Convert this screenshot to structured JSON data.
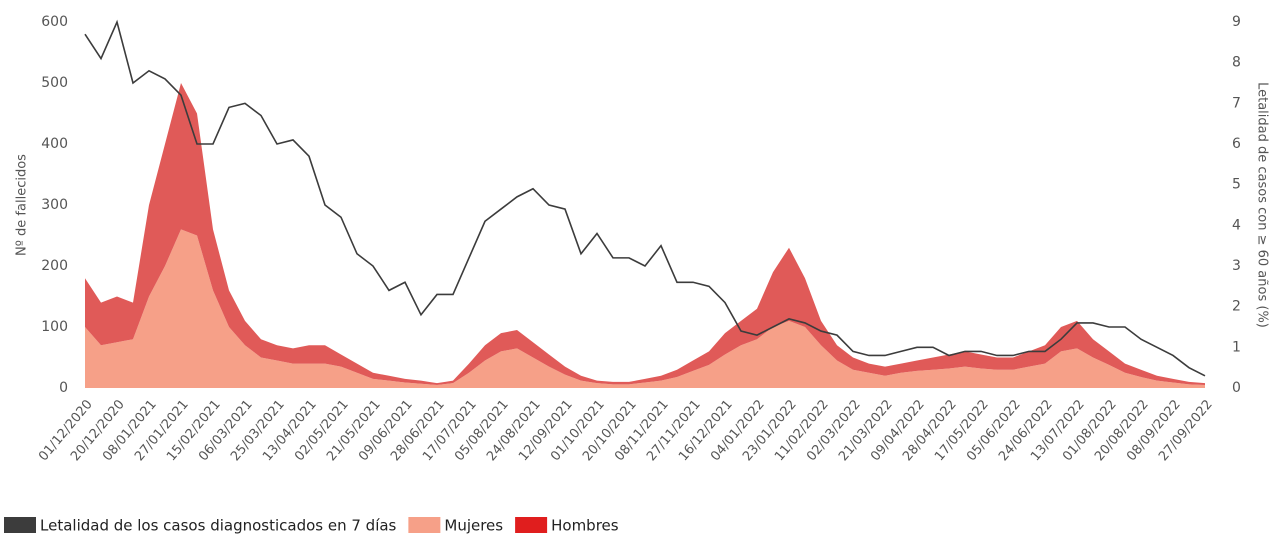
{
  "chart_data": {
    "type": "area",
    "stacked": true,
    "y_label": "Nº de fallecidos",
    "y2_label": "Letalidad de casos con ≥ 60 años (%)",
    "categories": [
      "01/12/2020",
      null,
      "20/12/2020",
      null,
      "08/01/2021",
      null,
      "27/01/2021",
      null,
      "15/02/2021",
      null,
      "06/03/2021",
      null,
      "25/03/2021",
      null,
      "13/04/2021",
      null,
      "02/05/2021",
      null,
      "21/05/2021",
      null,
      "09/06/2021",
      null,
      "28/06/2021",
      null,
      "17/07/2021",
      null,
      "05/08/2021",
      null,
      "24/08/2021",
      null,
      "12/09/2021",
      null,
      "01/10/2021",
      null,
      "20/10/2021",
      null,
      "08/11/2021",
      null,
      "27/11/2021",
      null,
      "16/12/2021",
      null,
      "04/01/2022",
      null,
      "23/01/2022",
      null,
      "11/02/2022",
      null,
      "02/03/2022",
      null,
      "21/03/2022",
      null,
      "09/04/2022",
      null,
      "28/04/2022",
      null,
      "17/05/2022",
      null,
      "05/06/2022",
      null,
      "24/06/2022",
      null,
      "13/07/2022",
      null,
      "01/08/2022",
      null,
      "20/08/2022",
      null,
      "08/09/2022",
      null,
      "27/09/2022"
    ],
    "series": [
      {
        "name": "Letalidad de los casos diagnosticados en 7 días",
        "type": "line",
        "axis": "y2",
        "color": "#3c3c3c",
        "values": [
          8.7,
          8.1,
          9.0,
          7.5,
          7.8,
          7.6,
          7.2,
          6.0,
          6.0,
          6.9,
          7.0,
          6.7,
          6.0,
          6.1,
          5.7,
          4.5,
          4.2,
          3.3,
          3.0,
          2.4,
          2.6,
          1.8,
          2.3,
          2.3,
          3.2,
          4.1,
          4.4,
          4.7,
          4.9,
          4.5,
          4.4,
          3.3,
          3.8,
          3.2,
          3.2,
          3.0,
          3.5,
          2.6,
          2.6,
          2.5,
          2.1,
          1.4,
          1.3,
          1.5,
          1.7,
          1.6,
          1.4,
          1.3,
          0.9,
          0.8,
          0.8,
          0.9,
          1.0,
          1.0,
          0.8,
          0.9,
          0.9,
          0.8,
          0.8,
          0.9,
          0.9,
          1.2,
          1.6,
          1.6,
          1.5,
          1.5,
          1.2,
          1.0,
          0.8,
          0.5,
          0.3
        ]
      },
      {
        "name": "Mujeres",
        "color": "#f6a088",
        "values": [
          100,
          70,
          75,
          80,
          150,
          200,
          260,
          250,
          160,
          100,
          70,
          50,
          45,
          40,
          40,
          40,
          35,
          25,
          15,
          12,
          9,
          7,
          5,
          8,
          25,
          45,
          60,
          65,
          50,
          35,
          22,
          12,
          8,
          6,
          6,
          9,
          12,
          18,
          28,
          38,
          55,
          70,
          80,
          100,
          110,
          100,
          70,
          45,
          30,
          25,
          20,
          25,
          28,
          30,
          32,
          35,
          32,
          30,
          30,
          35,
          40,
          60,
          65,
          50,
          38,
          25,
          18,
          12,
          9,
          6,
          5
        ]
      },
      {
        "name": "Hombres",
        "color": "#e05a58",
        "legend_color": "#e01e1e",
        "values": [
          80,
          70,
          75,
          60,
          150,
          200,
          240,
          200,
          100,
          60,
          40,
          30,
          25,
          25,
          30,
          30,
          20,
          15,
          10,
          8,
          6,
          5,
          3,
          4,
          15,
          25,
          30,
          30,
          25,
          20,
          13,
          8,
          4,
          4,
          4,
          6,
          8,
          12,
          17,
          22,
          35,
          40,
          50,
          90,
          120,
          80,
          40,
          25,
          20,
          15,
          15,
          15,
          17,
          20,
          23,
          25,
          23,
          20,
          20,
          25,
          30,
          40,
          45,
          30,
          22,
          15,
          12,
          8,
          6,
          4,
          3
        ]
      }
    ],
    "ylim": [
      0,
      600
    ],
    "yticks": [
      0,
      100,
      200,
      300,
      400,
      500,
      600
    ],
    "y2lim": [
      0,
      9
    ],
    "y2ticks": [
      0,
      1,
      2,
      3,
      4,
      5,
      6,
      7,
      8,
      9
    ]
  }
}
